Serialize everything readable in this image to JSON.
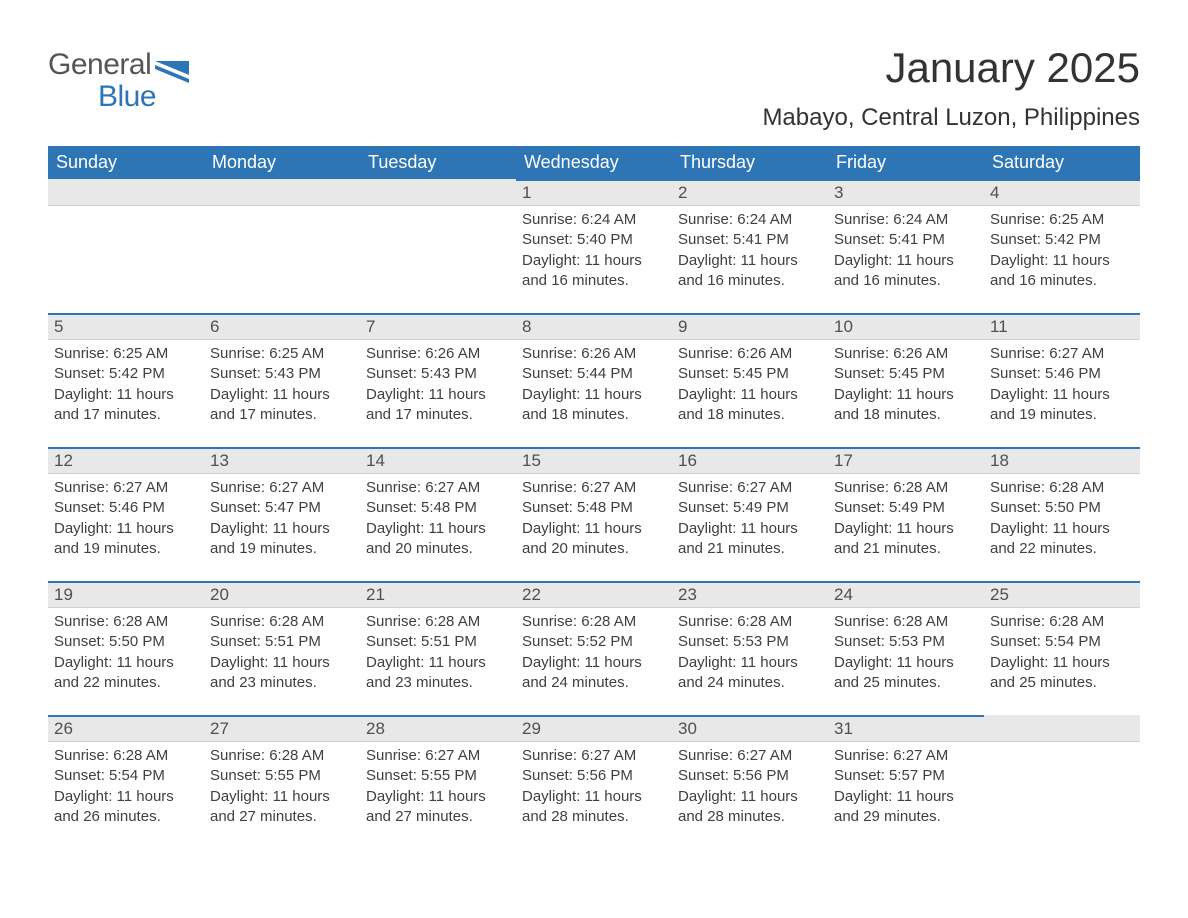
{
  "brand": {
    "text1": "General",
    "text2": "Blue",
    "logo_color": "#2e75b6"
  },
  "title": "January 2025",
  "location": "Mabayo, Central Luzon, Philippines",
  "colors": {
    "header_bg": "#2e75b6",
    "header_text": "#ffffff",
    "daynum_bg": "#e8e8e8",
    "daynum_border_top": "#2e75b6",
    "body_bg": "#ffffff",
    "text": "#404040"
  },
  "type": "table",
  "week_start": "Sunday",
  "columns": [
    "Sunday",
    "Monday",
    "Tuesday",
    "Wednesday",
    "Thursday",
    "Friday",
    "Saturday"
  ],
  "weeks": [
    [
      null,
      null,
      null,
      {
        "n": "1",
        "sunrise": "6:24 AM",
        "sunset": "5:40 PM",
        "daylight": "11 hours and 16 minutes."
      },
      {
        "n": "2",
        "sunrise": "6:24 AM",
        "sunset": "5:41 PM",
        "daylight": "11 hours and 16 minutes."
      },
      {
        "n": "3",
        "sunrise": "6:24 AM",
        "sunset": "5:41 PM",
        "daylight": "11 hours and 16 minutes."
      },
      {
        "n": "4",
        "sunrise": "6:25 AM",
        "sunset": "5:42 PM",
        "daylight": "11 hours and 16 minutes."
      }
    ],
    [
      {
        "n": "5",
        "sunrise": "6:25 AM",
        "sunset": "5:42 PM",
        "daylight": "11 hours and 17 minutes."
      },
      {
        "n": "6",
        "sunrise": "6:25 AM",
        "sunset": "5:43 PM",
        "daylight": "11 hours and 17 minutes."
      },
      {
        "n": "7",
        "sunrise": "6:26 AM",
        "sunset": "5:43 PM",
        "daylight": "11 hours and 17 minutes."
      },
      {
        "n": "8",
        "sunrise": "6:26 AM",
        "sunset": "5:44 PM",
        "daylight": "11 hours and 18 minutes."
      },
      {
        "n": "9",
        "sunrise": "6:26 AM",
        "sunset": "5:45 PM",
        "daylight": "11 hours and 18 minutes."
      },
      {
        "n": "10",
        "sunrise": "6:26 AM",
        "sunset": "5:45 PM",
        "daylight": "11 hours and 18 minutes."
      },
      {
        "n": "11",
        "sunrise": "6:27 AM",
        "sunset": "5:46 PM",
        "daylight": "11 hours and 19 minutes."
      }
    ],
    [
      {
        "n": "12",
        "sunrise": "6:27 AM",
        "sunset": "5:46 PM",
        "daylight": "11 hours and 19 minutes."
      },
      {
        "n": "13",
        "sunrise": "6:27 AM",
        "sunset": "5:47 PM",
        "daylight": "11 hours and 19 minutes."
      },
      {
        "n": "14",
        "sunrise": "6:27 AM",
        "sunset": "5:48 PM",
        "daylight": "11 hours and 20 minutes."
      },
      {
        "n": "15",
        "sunrise": "6:27 AM",
        "sunset": "5:48 PM",
        "daylight": "11 hours and 20 minutes."
      },
      {
        "n": "16",
        "sunrise": "6:27 AM",
        "sunset": "5:49 PM",
        "daylight": "11 hours and 21 minutes."
      },
      {
        "n": "17",
        "sunrise": "6:28 AM",
        "sunset": "5:49 PM",
        "daylight": "11 hours and 21 minutes."
      },
      {
        "n": "18",
        "sunrise": "6:28 AM",
        "sunset": "5:50 PM",
        "daylight": "11 hours and 22 minutes."
      }
    ],
    [
      {
        "n": "19",
        "sunrise": "6:28 AM",
        "sunset": "5:50 PM",
        "daylight": "11 hours and 22 minutes."
      },
      {
        "n": "20",
        "sunrise": "6:28 AM",
        "sunset": "5:51 PM",
        "daylight": "11 hours and 23 minutes."
      },
      {
        "n": "21",
        "sunrise": "6:28 AM",
        "sunset": "5:51 PM",
        "daylight": "11 hours and 23 minutes."
      },
      {
        "n": "22",
        "sunrise": "6:28 AM",
        "sunset": "5:52 PM",
        "daylight": "11 hours and 24 minutes."
      },
      {
        "n": "23",
        "sunrise": "6:28 AM",
        "sunset": "5:53 PM",
        "daylight": "11 hours and 24 minutes."
      },
      {
        "n": "24",
        "sunrise": "6:28 AM",
        "sunset": "5:53 PM",
        "daylight": "11 hours and 25 minutes."
      },
      {
        "n": "25",
        "sunrise": "6:28 AM",
        "sunset": "5:54 PM",
        "daylight": "11 hours and 25 minutes."
      }
    ],
    [
      {
        "n": "26",
        "sunrise": "6:28 AM",
        "sunset": "5:54 PM",
        "daylight": "11 hours and 26 minutes."
      },
      {
        "n": "27",
        "sunrise": "6:28 AM",
        "sunset": "5:55 PM",
        "daylight": "11 hours and 27 minutes."
      },
      {
        "n": "28",
        "sunrise": "6:27 AM",
        "sunset": "5:55 PM",
        "daylight": "11 hours and 27 minutes."
      },
      {
        "n": "29",
        "sunrise": "6:27 AM",
        "sunset": "5:56 PM",
        "daylight": "11 hours and 28 minutes."
      },
      {
        "n": "30",
        "sunrise": "6:27 AM",
        "sunset": "5:56 PM",
        "daylight": "11 hours and 28 minutes."
      },
      {
        "n": "31",
        "sunrise": "6:27 AM",
        "sunset": "5:57 PM",
        "daylight": "11 hours and 29 minutes."
      },
      null
    ]
  ],
  "labels": {
    "sunrise": "Sunrise:",
    "sunset": "Sunset:",
    "daylight": "Daylight:"
  },
  "font": {
    "family": "Arial",
    "header_size_pt": 14,
    "body_size_pt": 11,
    "title_size_pt": 32,
    "location_size_pt": 18
  }
}
